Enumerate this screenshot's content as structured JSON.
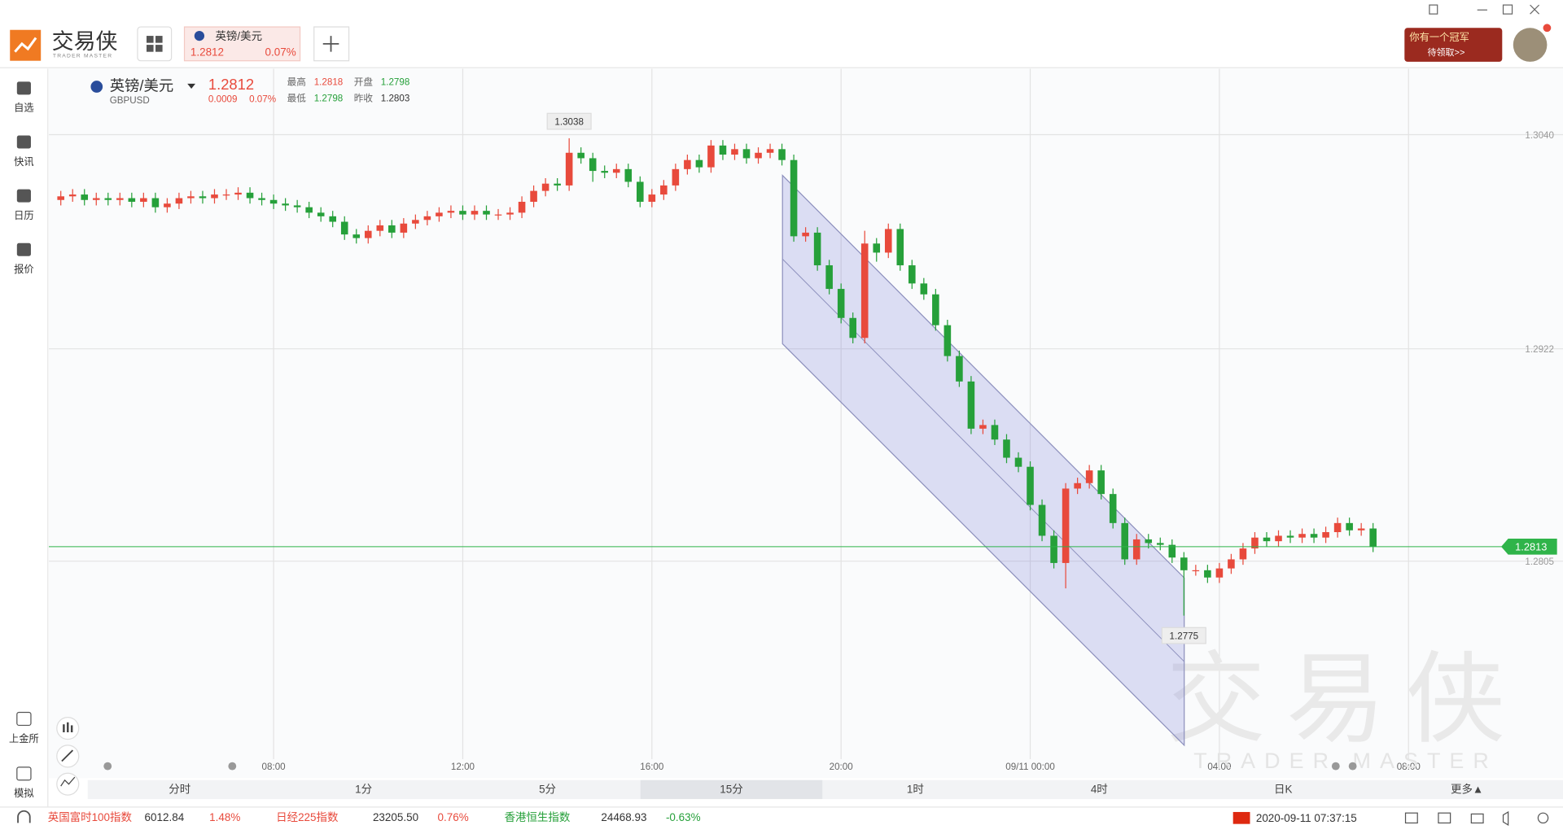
{
  "app": {
    "logo_cn": "交易侠",
    "logo_en": "TRADER MASTER",
    "tab": {
      "name": "英镑/美元",
      "price": "1.2812",
      "change": "0.07%"
    },
    "promo": {
      "line1": "你有一个冠军",
      "line2": "待领取>>"
    }
  },
  "sidebar": [
    "自选",
    "快讯",
    "日历",
    "报价"
  ],
  "sidebar_bottom": [
    "上金所",
    "模拟"
  ],
  "quote": {
    "name": "英镑/美元",
    "code": "GBPUSD",
    "price": "1.2812",
    "change": "0.0009",
    "change_pct": "0.07%",
    "stats": [
      {
        "label": "最高",
        "value": "1.2818",
        "color": "#e84a3c"
      },
      {
        "label": "开盘",
        "value": "1.2798",
        "color": "#26a03a"
      },
      {
        "label": "最低",
        "value": "1.2798",
        "color": "#26a03a"
      },
      {
        "label": "昨收",
        "value": "1.2803",
        "color": "#333333"
      }
    ]
  },
  "chart_data": {
    "type": "candlestick",
    "categories": [
      null,
      null,
      null,
      null,
      null,
      null,
      null,
      null,
      null,
      null,
      null,
      null,
      null,
      null,
      null,
      null,
      null,
      null,
      "08:00",
      null,
      null,
      null,
      null,
      null,
      null,
      null,
      null,
      null,
      null,
      null,
      null,
      null,
      null,
      null,
      "12:00",
      null,
      null,
      null,
      null,
      null,
      null,
      null,
      null,
      null,
      null,
      null,
      null,
      null,
      null,
      null,
      "16:00",
      null,
      null,
      null,
      null,
      null,
      null,
      null,
      null,
      null,
      null,
      null,
      null,
      null,
      null,
      null,
      "20:00",
      null,
      null,
      null,
      null,
      null,
      null,
      null,
      null,
      null,
      null,
      null,
      null,
      null,
      null,
      null,
      "09/11 00:00",
      null,
      null,
      null,
      null,
      null,
      null,
      null,
      null,
      null,
      null,
      null,
      null,
      null,
      null,
      null,
      "04:00",
      null,
      null,
      null,
      null,
      null,
      null,
      null,
      null,
      null,
      null,
      null,
      null,
      null,
      null,
      null,
      "08:00"
    ],
    "open": [
      1.3004,
      1.3006,
      1.3007,
      1.3004,
      1.3005,
      1.3004,
      1.3005,
      1.3003,
      1.3005,
      1.3,
      1.3002,
      1.3005,
      1.3006,
      1.3005,
      1.3007,
      1.3007,
      1.3008,
      1.3005,
      1.3004,
      1.3002,
      1.3001,
      1.3,
      1.2997,
      1.2995,
      1.2992,
      1.2985,
      1.2983,
      1.2987,
      1.299,
      1.2986,
      1.2991,
      1.2993,
      1.2995,
      1.2997,
      1.2998,
      1.2996,
      1.2998,
      1.2996,
      1.2996,
      1.2997,
      1.3003,
      1.3009,
      1.3013,
      1.3012,
      1.303,
      1.3027,
      1.302,
      1.3019,
      1.3021,
      1.3014,
      1.3003,
      1.3007,
      1.3012,
      1.3021,
      1.3026,
      1.3022,
      1.3034,
      1.3029,
      1.3032,
      1.3027,
      1.303,
      1.3032,
      1.3026,
      1.2984,
      1.2986,
      1.2968,
      1.2955,
      1.2939,
      1.2928,
      1.298,
      1.2975,
      1.2988,
      1.2968,
      1.2958,
      1.2952,
      1.2935,
      1.2918,
      1.2904,
      1.2878,
      1.288,
      1.2872,
      1.2862,
      1.2857,
      1.2836,
      1.2819,
      1.2804,
      1.2845,
      1.2848,
      1.2855,
      1.2842,
      1.2826,
      1.2806,
      1.2817,
      1.2815,
      1.2814,
      1.2807,
      1.28,
      1.28,
      1.2796,
      1.2801,
      1.2806,
      1.2812,
      1.2818,
      1.2816,
      1.2819,
      1.2818,
      1.282,
      1.2818,
      1.2821,
      1.2826,
      1.2822,
      1.2823,
      null,
      null,
      null
    ],
    "high": [
      1.3009,
      1.301,
      1.301,
      1.3008,
      1.3008,
      1.3008,
      1.3008,
      1.3008,
      1.3008,
      1.3005,
      1.3008,
      1.3009,
      1.3009,
      1.301,
      1.301,
      1.3011,
      1.3011,
      1.3008,
      1.3007,
      1.3005,
      1.3004,
      1.3003,
      1.3,
      1.2998,
      1.2995,
      1.2988,
      1.299,
      1.2993,
      1.2993,
      1.2994,
      1.2996,
      1.2998,
      1.3,
      1.3001,
      1.3001,
      1.3001,
      1.3001,
      1.2999,
      1.3,
      1.3006,
      1.3012,
      1.3016,
      1.3016,
      1.3038,
      1.3033,
      1.303,
      1.3023,
      1.3024,
      1.3024,
      1.3017,
      1.301,
      1.3015,
      1.3024,
      1.3029,
      1.3029,
      1.3037,
      1.3037,
      1.3035,
      1.3035,
      1.3033,
      1.3035,
      1.3035,
      1.3029,
      1.2989,
      1.2989,
      1.2971,
      1.2958,
      1.2942,
      1.2987,
      1.2983,
      1.2991,
      1.2991,
      1.2971,
      1.2961,
      1.2955,
      1.2938,
      1.2921,
      1.2907,
      1.2883,
      1.2883,
      1.2875,
      1.2865,
      1.286,
      1.2839,
      1.2822,
      1.2848,
      1.2851,
      1.2858,
      1.2858,
      1.2845,
      1.2829,
      1.282,
      1.282,
      1.2818,
      1.2817,
      1.281,
      1.2803,
      1.2803,
      1.2804,
      1.2809,
      1.2815,
      1.2821,
      1.2821,
      1.2822,
      1.2822,
      1.2823,
      1.2823,
      1.2824,
      1.2829,
      1.2829,
      1.2826,
      1.2826,
      null,
      null,
      null
    ],
    "low": [
      1.3001,
      1.3003,
      1.3001,
      1.3001,
      1.3001,
      1.3001,
      1.3,
      1.3,
      1.2997,
      1.2997,
      1.2999,
      1.3002,
      1.3002,
      1.3002,
      1.3004,
      1.3004,
      1.3002,
      1.3001,
      1.2999,
      1.2998,
      1.2997,
      1.2994,
      1.2992,
      1.2989,
      1.2982,
      1.298,
      1.298,
      1.2984,
      1.2983,
      1.2983,
      1.2988,
      1.299,
      1.2992,
      1.2994,
      1.2993,
      1.2993,
      1.2993,
      1.2993,
      1.2993,
      1.2994,
      1.3,
      1.3006,
      1.3009,
      1.3009,
      1.3024,
      1.3014,
      1.3016,
      1.3016,
      1.3011,
      1.3,
      1.3,
      1.3004,
      1.3009,
      1.3018,
      1.3019,
      1.3019,
      1.3026,
      1.3026,
      1.3024,
      1.3024,
      1.3027,
      1.3023,
      1.2981,
      1.2981,
      1.2965,
      1.2952,
      1.2936,
      1.2925,
      1.2925,
      1.297,
      1.2972,
      1.2965,
      1.2955,
      1.2949,
      1.2932,
      1.2915,
      1.2901,
      1.2875,
      1.2875,
      1.2869,
      1.2859,
      1.2854,
      1.2833,
      1.2816,
      1.2801,
      1.279,
      1.2842,
      1.2845,
      1.2839,
      1.2823,
      1.2803,
      1.2803,
      1.2812,
      1.2811,
      1.2804,
      1.2775,
      1.2797,
      1.2793,
      1.2793,
      1.2798,
      1.2803,
      1.2809,
      1.2813,
      1.2813,
      1.2815,
      1.2815,
      1.2815,
      1.2815,
      1.2818,
      1.2819,
      1.2819,
      1.281,
      null,
      null,
      null
    ],
    "close": [
      1.3006,
      1.3007,
      1.3004,
      1.3005,
      1.3004,
      1.3005,
      1.3003,
      1.3005,
      1.3,
      1.3002,
      1.3005,
      1.3006,
      1.3005,
      1.3007,
      1.3007,
      1.3008,
      1.3005,
      1.3004,
      1.3002,
      1.3001,
      1.3,
      1.2997,
      1.2995,
      1.2992,
      1.2985,
      1.2983,
      1.2987,
      1.299,
      1.2986,
      1.2991,
      1.2993,
      1.2995,
      1.2997,
      1.2998,
      1.2996,
      1.2998,
      1.2996,
      1.2996,
      1.2997,
      1.3003,
      1.3009,
      1.3013,
      1.3012,
      1.303,
      1.3027,
      1.302,
      1.3019,
      1.3021,
      1.3014,
      1.3003,
      1.3007,
      1.3012,
      1.3021,
      1.3026,
      1.3022,
      1.3034,
      1.3029,
      1.3032,
      1.3027,
      1.303,
      1.3032,
      1.3026,
      1.2984,
      1.2986,
      1.2968,
      1.2955,
      1.2939,
      1.2928,
      1.298,
      1.2975,
      1.2988,
      1.2968,
      1.2958,
      1.2952,
      1.2935,
      1.2918,
      1.2904,
      1.2878,
      1.288,
      1.2872,
      1.2862,
      1.2857,
      1.2836,
      1.2819,
      1.2804,
      1.2845,
      1.2848,
      1.2855,
      1.2842,
      1.2826,
      1.2806,
      1.2817,
      1.2815,
      1.2814,
      1.2807,
      1.28,
      1.28,
      1.2796,
      1.2801,
      1.2806,
      1.2812,
      1.2818,
      1.2816,
      1.2819,
      1.2818,
      1.282,
      1.2818,
      1.2821,
      1.2826,
      1.2822,
      1.2823,
      1.2813,
      null,
      null,
      null
    ],
    "ylim": [
      1.2697,
      1.3073
    ],
    "yticks": [
      {
        "value": 1.304,
        "label": "1.3040"
      },
      1.2922,
      1.2805
    ],
    "grid": true,
    "up_color": "#e84a3c",
    "down_color": "#26a03a",
    "last_price_color": "#2fb44a"
  },
  "timeframes": [
    "分时",
    "1分",
    "5分",
    "15分",
    "1时",
    "4时",
    "日K",
    "更多▲"
  ],
  "selected_timeframe": "15分",
  "watermark": {
    "cn": "交易侠",
    "en": "TRADER MASTER"
  },
  "ticker": [
    {
      "name": "英国富时100指数",
      "value": "6012.84",
      "change": "1.48%",
      "color": "#e84a3c"
    },
    {
      "name": "日经225指数",
      "value": "23205.50",
      "change": "0.76%",
      "color": "#e84a3c"
    },
    {
      "name": "香港恒生指数",
      "value": "24468.93",
      "change": "-0.63%",
      "color": "#26a03a"
    }
  ],
  "clock": "2020-09-11 07:37:15"
}
